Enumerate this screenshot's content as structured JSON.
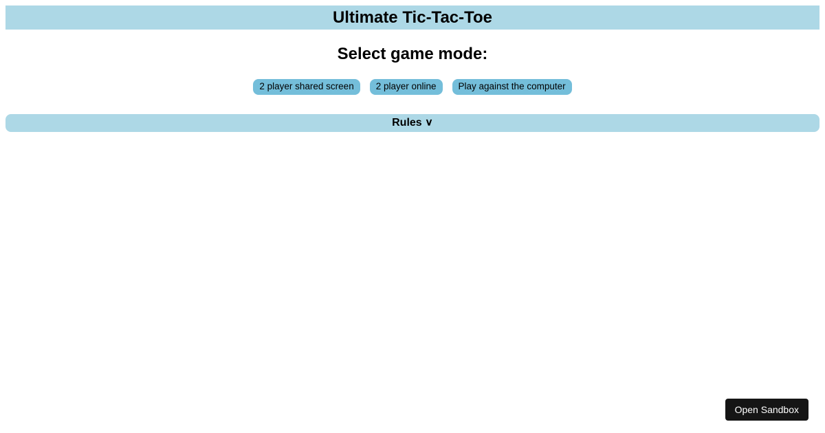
{
  "colors": {
    "header_bg": "#add8e6",
    "button_bg": "#74beda",
    "rules_bg": "#add8e6",
    "sandbox_bg": "#151515",
    "sandbox_text": "#ffffff",
    "page_bg": "#ffffff",
    "text": "#000000"
  },
  "header": {
    "title": "Ultimate Tic-Tac-Toe"
  },
  "subtitle": "Select game mode:",
  "mode_buttons": [
    {
      "label": "2 player shared screen"
    },
    {
      "label": "2 player online"
    },
    {
      "label": "Play against the computer"
    }
  ],
  "rules": {
    "label": "Rules ",
    "chevron": "∨"
  },
  "sandbox": {
    "label": "Open Sandbox"
  }
}
